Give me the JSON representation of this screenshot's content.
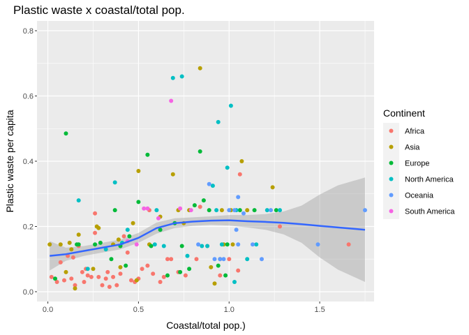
{
  "chart_data": {
    "type": "scatter",
    "title": "Plastic waste x coastal/total pop.",
    "xlabel": "Coastal/total pop.)",
    "ylabel": "Plastic waste per capita",
    "xlim": [
      -0.06,
      1.8
    ],
    "ylim": [
      -0.03,
      0.83
    ],
    "xticks": [
      0.0,
      0.5,
      1.0,
      1.5
    ],
    "xtick_labels": [
      "0.0",
      "0.5",
      "1.0",
      "1.5"
    ],
    "yticks": [
      0.0,
      0.2,
      0.4,
      0.6,
      0.8
    ],
    "ytick_labels": [
      "0.0",
      "0.2",
      "0.4",
      "0.6",
      "0.8"
    ],
    "grid": true,
    "legend_position": "right",
    "legend": {
      "title": "Continent",
      "entries": [
        "Africa",
        "Asia",
        "Europe",
        "North America",
        "Oceania",
        "South America"
      ]
    },
    "colors": {
      "Africa": "#F8766D",
      "Asia": "#B79F00",
      "Europe": "#00BA38",
      "North America": "#00BFC4",
      "Oceania": "#619CFF",
      "South America": "#F564E3",
      "panel_background": "#EBEBEB",
      "smooth_line": "#3366FF",
      "confidence_band": "#999999"
    },
    "series": [
      {
        "name": "Africa",
        "points": [
          [
            0.02,
            0.045
          ],
          [
            0.05,
            0.03
          ],
          [
            0.07,
            0.09
          ],
          [
            0.09,
            0.035
          ],
          [
            0.11,
            0.11
          ],
          [
            0.13,
            0.04
          ],
          [
            0.15,
            0.02
          ],
          [
            0.17,
            0.14
          ],
          [
            0.19,
            0.06
          ],
          [
            0.2,
            0.03
          ],
          [
            0.22,
            0.05
          ],
          [
            0.24,
            0.045
          ],
          [
            0.26,
            0.18
          ],
          [
            0.26,
            0.24
          ],
          [
            0.28,
            0.045
          ],
          [
            0.3,
            0.02
          ],
          [
            0.32,
            0.04
          ],
          [
            0.33,
            0.06
          ],
          [
            0.34,
            0.015
          ],
          [
            0.36,
            0.045
          ],
          [
            0.38,
            0.02
          ],
          [
            0.4,
            0.055
          ],
          [
            0.42,
            0.17
          ],
          [
            0.44,
            0.12
          ],
          [
            0.46,
            0.035
          ],
          [
            0.48,
            0.03
          ],
          [
            0.5,
            0.04
          ],
          [
            0.52,
            0.07
          ],
          [
            0.55,
            0.08
          ],
          [
            0.56,
            0.25
          ],
          [
            0.58,
            0.055
          ],
          [
            0.62,
            0.03
          ],
          [
            0.64,
            0.045
          ],
          [
            0.66,
            0.1
          ],
          [
            0.68,
            0.1
          ],
          [
            0.72,
            0.06
          ],
          [
            0.76,
            0.05
          ],
          [
            0.82,
            0.1
          ],
          [
            0.84,
            0.26
          ],
          [
            0.88,
            0.14
          ],
          [
            0.95,
            0.05
          ],
          [
            1.0,
            0.1
          ],
          [
            1.05,
            0.065
          ],
          [
            1.06,
            0.36
          ],
          [
            1.28,
            0.2
          ],
          [
            1.66,
            0.145
          ],
          [
            0.21,
            0.07
          ],
          [
            0.14,
            0.105
          ]
        ]
      },
      {
        "name": "Asia",
        "points": [
          [
            0.01,
            0.145
          ],
          [
            0.07,
            0.145
          ],
          [
            0.1,
            0.06
          ],
          [
            0.12,
            0.15
          ],
          [
            0.13,
            0.13
          ],
          [
            0.15,
            0.01
          ],
          [
            0.17,
            0.175
          ],
          [
            0.25,
            0.07
          ],
          [
            0.27,
            0.2
          ],
          [
            0.28,
            0.195
          ],
          [
            0.36,
            0.145
          ],
          [
            0.39,
            0.16
          ],
          [
            0.4,
            0.075
          ],
          [
            0.47,
            0.21
          ],
          [
            0.49,
            0.035
          ],
          [
            0.5,
            0.37
          ],
          [
            0.56,
            0.145
          ],
          [
            0.62,
            0.23
          ],
          [
            0.69,
            0.36
          ],
          [
            0.72,
            0.25
          ],
          [
            0.78,
            0.25
          ],
          [
            0.84,
            0.685
          ],
          [
            0.9,
            0.075
          ],
          [
            0.92,
            0.025
          ],
          [
            0.95,
            0.1
          ],
          [
            0.97,
            0.145
          ],
          [
            1.01,
            0.25
          ],
          [
            1.07,
            0.4
          ],
          [
            1.1,
            0.25
          ],
          [
            1.24,
            0.32
          ],
          [
            0.96,
            0.25
          ],
          [
            1.02,
            0.145
          ],
          [
            0.75,
            0.21
          ]
        ]
      },
      {
        "name": "Europe",
        "points": [
          [
            0.04,
            0.04
          ],
          [
            0.1,
            0.485
          ],
          [
            0.16,
            0.145
          ],
          [
            0.17,
            0.145
          ],
          [
            0.26,
            0.145
          ],
          [
            0.29,
            0.15
          ],
          [
            0.35,
            0.1
          ],
          [
            0.37,
            0.25
          ],
          [
            0.4,
            0.14
          ],
          [
            0.43,
            0.08
          ],
          [
            0.45,
            0.17
          ],
          [
            0.5,
            0.275
          ],
          [
            0.55,
            0.42
          ],
          [
            0.57,
            0.14
          ],
          [
            0.62,
            0.19
          ],
          [
            0.66,
            0.05
          ],
          [
            0.7,
            0.21
          ],
          [
            0.73,
            0.06
          ],
          [
            0.78,
            0.07
          ],
          [
            0.81,
            0.265
          ],
          [
            0.84,
            0.43
          ],
          [
            0.86,
            0.28
          ],
          [
            0.89,
            0.25
          ],
          [
            0.94,
            0.08
          ],
          [
            0.98,
            0.05
          ],
          [
            0.99,
            0.145
          ],
          [
            1.06,
            0.25
          ],
          [
            1.14,
            0.25
          ],
          [
            1.26,
            0.25
          ],
          [
            0.74,
            0.14
          ]
        ]
      },
      {
        "name": "North America",
        "points": [
          [
            0.17,
            0.28
          ],
          [
            0.22,
            0.07
          ],
          [
            0.32,
            0.13
          ],
          [
            0.37,
            0.335
          ],
          [
            0.41,
            0.15
          ],
          [
            0.44,
            0.19
          ],
          [
            0.59,
            0.145
          ],
          [
            0.64,
            0.14
          ],
          [
            0.69,
            0.655
          ],
          [
            0.74,
            0.66
          ],
          [
            0.77,
            0.11
          ],
          [
            0.85,
            0.14
          ],
          [
            0.88,
            0.14
          ],
          [
            0.91,
            0.325
          ],
          [
            0.93,
            0.25
          ],
          [
            0.94,
            0.52
          ],
          [
            0.96,
            0.145
          ],
          [
            0.99,
            0.38
          ],
          [
            1.01,
            0.57
          ],
          [
            1.03,
            0.03
          ],
          [
            1.04,
            0.25
          ],
          [
            1.1,
            0.1
          ],
          [
            1.15,
            0.145
          ],
          [
            1.21,
            0.25
          ],
          [
            1.28,
            0.25
          ],
          [
            0.6,
            0.25
          ]
        ]
      },
      {
        "name": "Oceania",
        "points": [
          [
            0.83,
            0.145
          ],
          [
            0.92,
            0.1
          ],
          [
            0.95,
            0.1
          ],
          [
            0.97,
            0.1
          ],
          [
            1.0,
            0.25
          ],
          [
            1.03,
            0.25
          ],
          [
            1.05,
            0.29
          ],
          [
            1.05,
            0.145
          ],
          [
            1.04,
            0.19
          ],
          [
            1.08,
            0.24
          ],
          [
            1.13,
            0.145
          ],
          [
            1.18,
            0.1
          ],
          [
            1.23,
            0.25
          ],
          [
            1.49,
            0.145
          ],
          [
            1.75,
            0.25
          ],
          [
            0.89,
            0.33
          ]
        ]
      },
      {
        "name": "South America",
        "points": [
          [
            0.44,
            0.155
          ],
          [
            0.53,
            0.255
          ],
          [
            0.55,
            0.255
          ],
          [
            0.68,
            0.585
          ],
          [
            0.73,
            0.255
          ],
          [
            0.49,
            0.145
          ],
          [
            0.79,
            0.25
          ],
          [
            0.61,
            0.225
          ]
        ]
      }
    ],
    "smooth": {
      "method": "loess",
      "x": [
        0.01,
        0.1,
        0.2,
        0.3,
        0.4,
        0.5,
        0.6,
        0.7,
        0.8,
        0.9,
        1.0,
        1.1,
        1.2,
        1.3,
        1.4,
        1.5,
        1.6,
        1.75
      ],
      "y": [
        0.11,
        0.115,
        0.125,
        0.135,
        0.145,
        0.165,
        0.195,
        0.21,
        0.215,
        0.218,
        0.219,
        0.216,
        0.214,
        0.211,
        0.207,
        0.202,
        0.197,
        0.19
      ],
      "ci_lower": [
        0.065,
        0.095,
        0.11,
        0.12,
        0.13,
        0.15,
        0.178,
        0.195,
        0.202,
        0.205,
        0.203,
        0.197,
        0.19,
        0.176,
        0.15,
        0.105,
        0.068,
        0.03
      ],
      "ci_upper": [
        0.155,
        0.135,
        0.14,
        0.15,
        0.16,
        0.18,
        0.212,
        0.225,
        0.228,
        0.231,
        0.235,
        0.235,
        0.238,
        0.246,
        0.264,
        0.298,
        0.326,
        0.35
      ]
    }
  }
}
